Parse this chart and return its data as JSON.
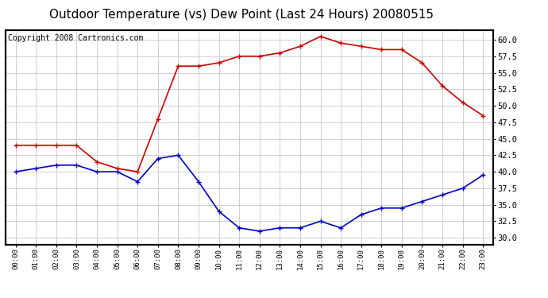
{
  "title": "Outdoor Temperature (vs) Dew Point (Last 24 Hours) 20080515",
  "copyright_text": "Copyright 2008 Cartronics.com",
  "hours": [
    "00:00",
    "01:00",
    "02:00",
    "03:00",
    "04:00",
    "05:00",
    "06:00",
    "07:00",
    "08:00",
    "09:00",
    "10:00",
    "11:00",
    "12:00",
    "13:00",
    "14:00",
    "15:00",
    "16:00",
    "17:00",
    "18:00",
    "19:00",
    "20:00",
    "21:00",
    "22:00",
    "23:00"
  ],
  "temp": [
    44.0,
    44.0,
    44.0,
    44.0,
    41.5,
    40.5,
    40.0,
    48.0,
    56.0,
    56.0,
    56.5,
    57.5,
    57.5,
    58.0,
    59.0,
    60.5,
    59.5,
    59.0,
    58.5,
    58.5,
    56.5,
    53.0,
    50.5,
    48.5
  ],
  "dew": [
    40.0,
    40.5,
    41.0,
    41.0,
    40.0,
    40.0,
    38.5,
    42.0,
    42.5,
    38.5,
    34.0,
    31.5,
    31.0,
    31.5,
    31.5,
    32.5,
    31.5,
    33.5,
    34.5,
    34.5,
    35.5,
    36.5,
    37.5,
    39.5
  ],
  "temp_color": "#cc0000",
  "dew_color": "#0000cc",
  "background_color": "#ffffff",
  "plot_background": "#ffffff",
  "grid_color": "#c8c8c8",
  "ylim": [
    29.0,
    61.5
  ],
  "yticks": [
    30.0,
    32.5,
    35.0,
    37.5,
    40.0,
    42.5,
    45.0,
    47.5,
    50.0,
    52.5,
    55.0,
    57.5,
    60.0
  ],
  "title_fontsize": 11,
  "copyright_fontsize": 7,
  "marker": "+",
  "marker_size": 5,
  "line_width": 1.2
}
